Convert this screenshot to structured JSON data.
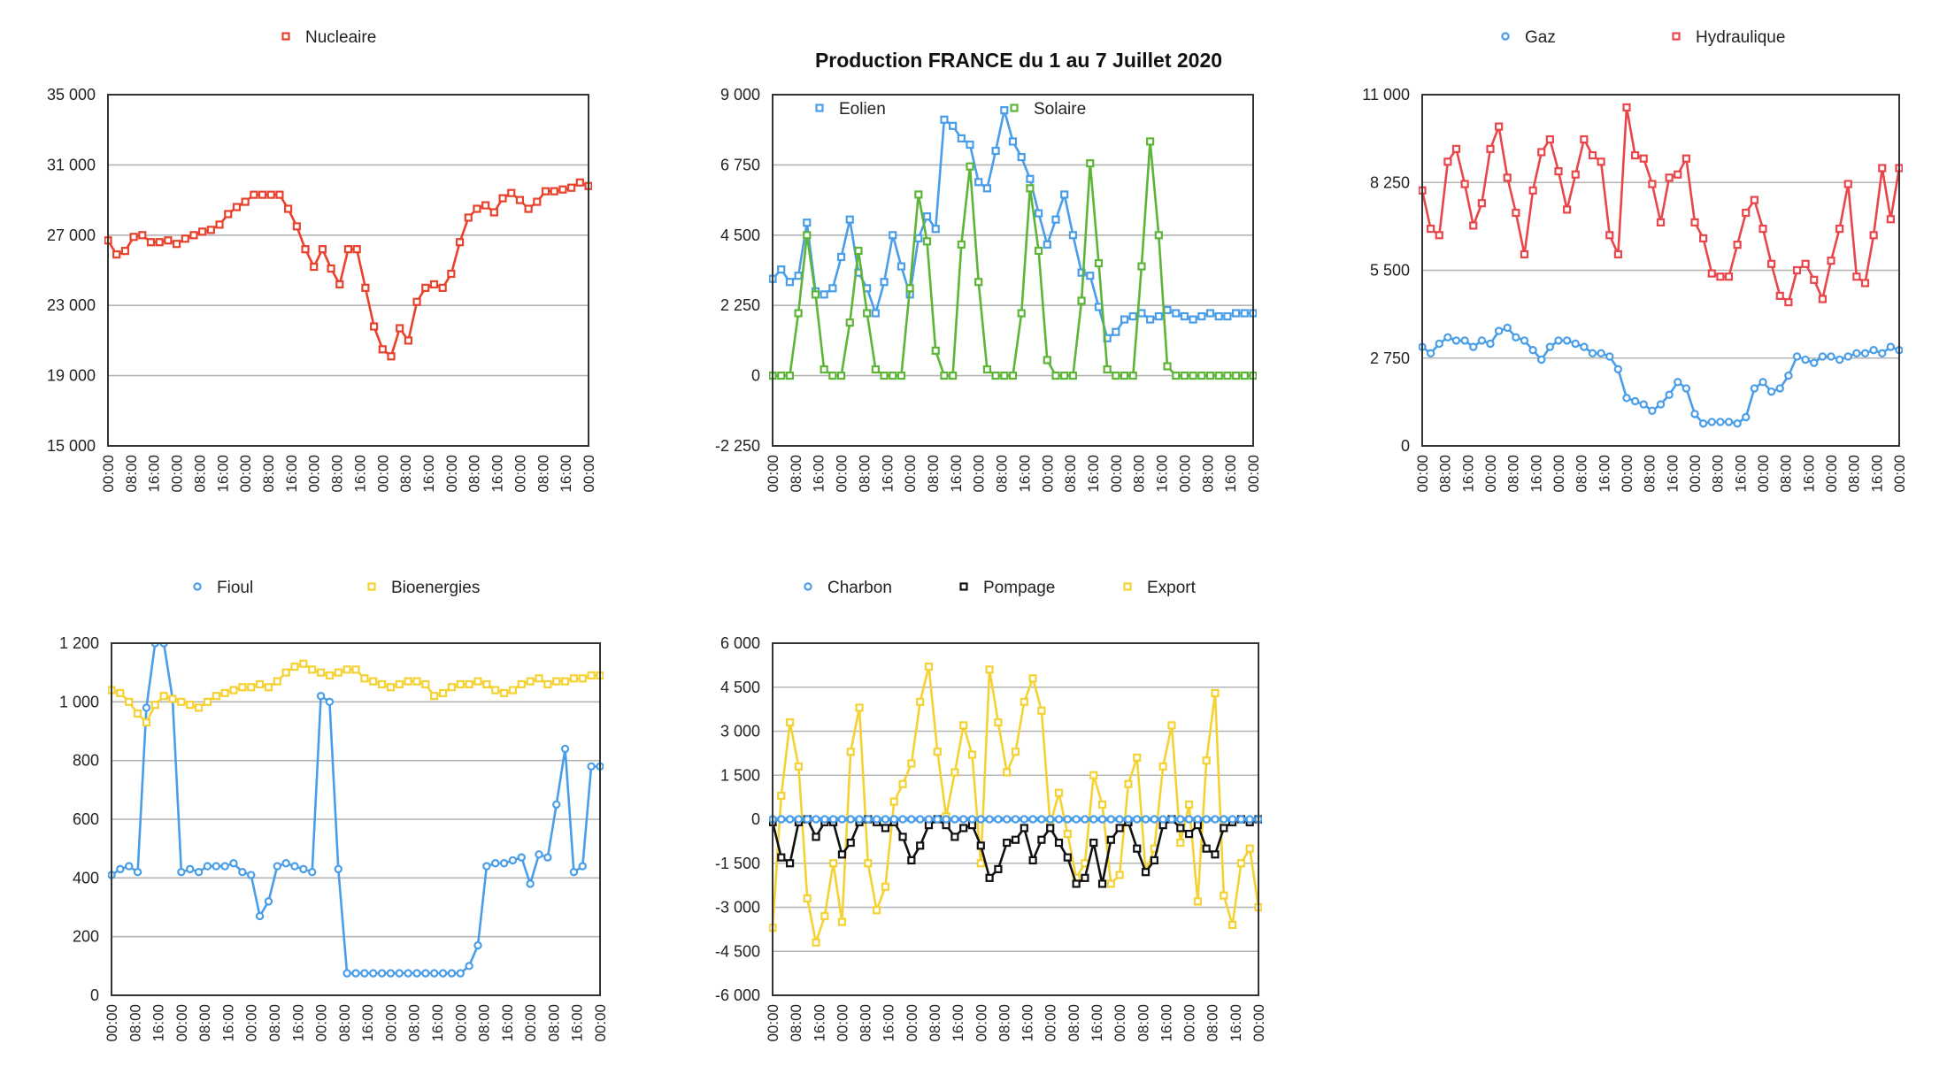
{
  "title": "Production FRANCE du 1 au 7 Juillet 2020",
  "chart_data": [
    {
      "id": "nucleaire",
      "type": "line",
      "ylim": [
        15000,
        35000
      ],
      "yticks": [
        15000,
        19000,
        23000,
        27000,
        31000,
        35000
      ],
      "ytick_labels": [
        "15 000",
        "19 000",
        "23 000",
        "27 000",
        "31 000",
        "35 000"
      ],
      "grid": true,
      "legend_position": "top-center",
      "xtick_labels": [
        "00:00",
        "08:00",
        "16:00",
        "00:00",
        "08:00",
        "16:00",
        "00:00",
        "08:00",
        "16:00",
        "00:00",
        "08:00",
        "16:00",
        "00:00",
        "08:00",
        "16:00",
        "00:00",
        "08:00",
        "16:00",
        "00:00",
        "08:00",
        "16:00",
        "00:00"
      ],
      "series": [
        {
          "name": "Nucleaire",
          "color": "#e8412c",
          "marker": "square",
          "values": [
            26700,
            25900,
            26100,
            26900,
            27000,
            26600,
            26600,
            26700,
            26500,
            26800,
            27000,
            27200,
            27300,
            27600,
            28200,
            28600,
            28900,
            29300,
            29300,
            29300,
            29300,
            28500,
            27500,
            26200,
            25200,
            26200,
            25100,
            24200,
            26200,
            26200,
            24000,
            21800,
            20500,
            20100,
            21700,
            21000,
            23200,
            24000,
            24200,
            24000,
            24800,
            26600,
            28000,
            28500,
            28700,
            28300,
            29100,
            29400,
            29000,
            28500,
            28900,
            29500,
            29500,
            29600,
            29700,
            30000,
            29800
          ]
        }
      ]
    },
    {
      "id": "eolien-solaire",
      "type": "line",
      "ylim": [
        -2250,
        9000
      ],
      "yticks": [
        -2250,
        0,
        2250,
        4500,
        6750,
        9000
      ],
      "ytick_labels": [
        "-2 250",
        "0",
        "2 250",
        "4 500",
        "6 750",
        "9 000"
      ],
      "grid": true,
      "legend_position": "top-inside",
      "xtick_labels": [
        "00:00",
        "08:00",
        "16:00",
        "00:00",
        "08:00",
        "16:00",
        "00:00",
        "08:00",
        "16:00",
        "00:00",
        "08:00",
        "16:00",
        "00:00",
        "08:00",
        "16:00",
        "00:00",
        "08:00",
        "16:00",
        "00:00",
        "08:00",
        "16:00",
        "00:00"
      ],
      "series": [
        {
          "name": "Eolien",
          "color": "#4a9ee8",
          "marker": "square",
          "values": [
            3100,
            3400,
            3000,
            3200,
            4900,
            2700,
            2600,
            2800,
            3800,
            5000,
            3300,
            2800,
            2000,
            3000,
            4500,
            3500,
            2600,
            4400,
            5100,
            4700,
            8200,
            8000,
            7600,
            7400,
            6200,
            6000,
            7200,
            8500,
            7500,
            7000,
            6300,
            5200,
            4200,
            5000,
            5800,
            4500,
            3300,
            3200,
            2200,
            1200,
            1400,
            1800,
            1900,
            2000,
            1800,
            1900,
            2100,
            2000,
            1900,
            1800,
            1900,
            2000,
            1900,
            1900,
            2000,
            2000,
            2000
          ]
        },
        {
          "name": "Solaire",
          "color": "#5db538",
          "marker": "square",
          "values": [
            0,
            0,
            0,
            2000,
            4500,
            2600,
            200,
            0,
            0,
            1700,
            4000,
            2000,
            200,
            0,
            0,
            0,
            2800,
            5800,
            4300,
            800,
            0,
            0,
            4200,
            6700,
            3000,
            200,
            0,
            0,
            0,
            2000,
            6000,
            4000,
            500,
            0,
            0,
            0,
            2400,
            6800,
            3600,
            200,
            0,
            0,
            0,
            3500,
            7500,
            4500,
            300,
            0,
            0,
            0,
            0,
            0,
            0,
            0,
            0,
            0,
            0
          ]
        }
      ]
    },
    {
      "id": "gaz-hydraulique",
      "type": "line",
      "ylim": [
        0,
        11000
      ],
      "yticks": [
        0,
        2750,
        5500,
        8250,
        11000
      ],
      "ytick_labels": [
        "0",
        "2 750",
        "5 500",
        "8 250",
        "11 000"
      ],
      "grid": true,
      "legend_position": "top-center",
      "xtick_labels": [
        "00:00",
        "08:00",
        "16:00",
        "00:00",
        "08:00",
        "16:00",
        "00:00",
        "08:00",
        "16:00",
        "00:00",
        "08:00",
        "16:00",
        "00:00",
        "08:00",
        "16:00",
        "00:00",
        "08:00",
        "16:00",
        "00:00",
        "08:00",
        "16:00",
        "00:00"
      ],
      "series": [
        {
          "name": "Gaz",
          "color": "#4a9ee8",
          "marker": "circle",
          "values": [
            3100,
            2900,
            3200,
            3400,
            3300,
            3300,
            3100,
            3300,
            3200,
            3600,
            3700,
            3400,
            3300,
            3000,
            2700,
            3100,
            3300,
            3300,
            3200,
            3100,
            2900,
            2900,
            2800,
            2400,
            1500,
            1400,
            1300,
            1100,
            1300,
            1600,
            2000,
            1800,
            1000,
            700,
            750,
            750,
            750,
            700,
            900,
            1800,
            2000,
            1700,
            1800,
            2200,
            2800,
            2700,
            2600,
            2800,
            2800,
            2700,
            2800,
            2900,
            2900,
            3000,
            2900,
            3100,
            3000
          ]
        },
        {
          "name": "Hydraulique",
          "color": "#e8464b",
          "marker": "square",
          "values": [
            8000,
            6800,
            6600,
            8900,
            9300,
            8200,
            6900,
            7600,
            9300,
            10000,
            8400,
            7300,
            6000,
            8000,
            9200,
            9600,
            8600,
            7400,
            8500,
            9600,
            9100,
            8900,
            6600,
            6000,
            10600,
            9100,
            9000,
            8200,
            7000,
            8400,
            8500,
            9000,
            7000,
            6500,
            5400,
            5300,
            5300,
            6300,
            7300,
            7700,
            6800,
            5700,
            4700,
            4500,
            5500,
            5700,
            5200,
            4600,
            5800,
            6800,
            8200,
            5300,
            5100,
            6600,
            8700,
            7100,
            8700
          ]
        }
      ]
    },
    {
      "id": "fioul-bioenergies",
      "type": "line",
      "ylim": [
        0,
        1200
      ],
      "yticks": [
        0,
        200,
        400,
        600,
        800,
        1000,
        1200
      ],
      "ytick_labels": [
        "0",
        "200",
        "400",
        "600",
        "800",
        "1 000",
        "1 200"
      ],
      "grid": true,
      "legend_position": "top-center",
      "xtick_labels": [
        "00:00",
        "08:00",
        "16:00",
        "00:00",
        "08:00",
        "16:00",
        "00:00",
        "08:00",
        "16:00",
        "00:00",
        "08:00",
        "16:00",
        "00:00",
        "08:00",
        "16:00",
        "00:00",
        "08:00",
        "16:00",
        "00:00",
        "08:00",
        "16:00",
        "00:00"
      ],
      "series": [
        {
          "name": "Fioul",
          "color": "#4a9ee8",
          "marker": "circle",
          "values": [
            410,
            430,
            440,
            420,
            980,
            1200,
            1200,
            1010,
            420,
            430,
            420,
            440,
            440,
            440,
            450,
            420,
            410,
            270,
            320,
            440,
            450,
            440,
            430,
            420,
            1020,
            1000,
            430,
            75,
            75,
            75,
            75,
            75,
            75,
            75,
            75,
            75,
            75,
            75,
            75,
            75,
            75,
            100,
            170,
            440,
            450,
            450,
            460,
            470,
            380,
            480,
            470,
            650,
            840,
            420,
            440,
            780,
            780
          ]
        },
        {
          "name": "Bioenergies",
          "color": "#f5d234",
          "marker": "square",
          "values": [
            1040,
            1030,
            1000,
            960,
            930,
            990,
            1020,
            1010,
            1000,
            990,
            980,
            1000,
            1020,
            1030,
            1040,
            1050,
            1050,
            1060,
            1050,
            1070,
            1100,
            1120,
            1130,
            1110,
            1100,
            1090,
            1100,
            1110,
            1110,
            1080,
            1070,
            1060,
            1050,
            1060,
            1070,
            1070,
            1060,
            1020,
            1030,
            1050,
            1060,
            1060,
            1070,
            1060,
            1040,
            1030,
            1040,
            1060,
            1070,
            1080,
            1060,
            1070,
            1070,
            1080,
            1080,
            1090,
            1090
          ]
        }
      ]
    },
    {
      "id": "charbon-pompage-export",
      "type": "line",
      "ylim": [
        -6000,
        6000
      ],
      "yticks": [
        -6000,
        -4500,
        -3000,
        -1500,
        0,
        1500,
        3000,
        4500,
        6000
      ],
      "ytick_labels": [
        "-6 000",
        "-4 500",
        "-3 000",
        "-1 500",
        "0",
        "1 500",
        "3 000",
        "4 500",
        "6 000"
      ],
      "grid": true,
      "legend_position": "top-center",
      "xtick_labels": [
        "00:00",
        "08:00",
        "16:00",
        "00:00",
        "08:00",
        "16:00",
        "00:00",
        "08:00",
        "16:00",
        "00:00",
        "08:00",
        "16:00",
        "00:00",
        "08:00",
        "16:00",
        "00:00",
        "08:00",
        "16:00",
        "00:00",
        "08:00",
        "16:00",
        "00:00"
      ],
      "series": [
        {
          "name": "Export",
          "color": "#f5d234",
          "marker": "square",
          "values": [
            -3700,
            800,
            3300,
            1800,
            -2700,
            -4200,
            -3300,
            -1500,
            -3500,
            2300,
            3800,
            -1500,
            -3100,
            -2300,
            600,
            1200,
            1900,
            4000,
            5200,
            2300,
            100,
            1600,
            3200,
            2200,
            -1500,
            5100,
            3300,
            1600,
            2300,
            4000,
            4800,
            3700,
            -200,
            900,
            -500,
            -2000,
            -1500,
            1500,
            500,
            -2200,
            -1900,
            1200,
            2100,
            -1800,
            -1000,
            1800,
            3200,
            -800,
            500,
            -2800,
            2000,
            4300,
            -2600,
            -3600,
            -1500,
            -1000,
            -3000
          ]
        },
        {
          "name": "Pompage",
          "color": "#111111",
          "marker": "square",
          "values": [
            -100,
            -1300,
            -1500,
            -100,
            0,
            -600,
            -100,
            -100,
            -1200,
            -800,
            -100,
            0,
            -100,
            -300,
            -100,
            -600,
            -1400,
            -900,
            -200,
            0,
            -200,
            -600,
            -300,
            -200,
            -900,
            -2000,
            -1700,
            -800,
            -700,
            -300,
            -1400,
            -700,
            -300,
            -800,
            -1300,
            -2200,
            -2000,
            -800,
            -2200,
            -700,
            -300,
            -100,
            -1000,
            -1800,
            -1400,
            -200,
            0,
            -300,
            -500,
            -200,
            -1000,
            -1200,
            -300,
            -100,
            0,
            -100,
            0
          ]
        },
        {
          "name": "Charbon",
          "color": "#4a9ee8",
          "marker": "circle",
          "values": [
            0,
            0,
            0,
            0,
            0,
            0,
            0,
            0,
            0,
            0,
            0,
            0,
            0,
            0,
            0,
            0,
            0,
            0,
            0,
            0,
            0,
            0,
            0,
            0,
            0,
            0,
            0,
            0,
            0,
            0,
            0,
            0,
            0,
            0,
            0,
            0,
            0,
            0,
            0,
            0,
            0,
            0,
            0,
            0,
            0,
            0,
            0,
            0,
            0,
            0,
            0,
            0,
            0,
            0,
            0,
            0,
            0
          ]
        }
      ]
    }
  ]
}
